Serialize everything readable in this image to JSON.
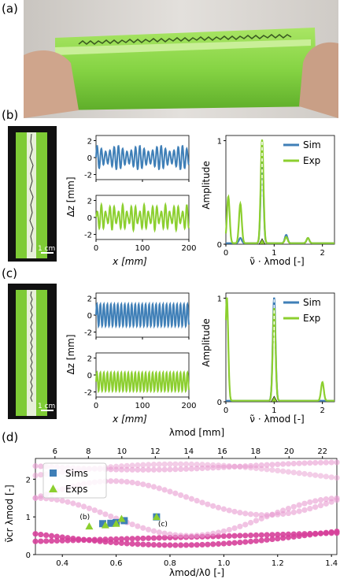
{
  "panels": {
    "a": "(a)",
    "b": "(b)",
    "c": "(c)",
    "d": "(d)"
  },
  "photo_a": {
    "description_colors": {
      "background": "#d8d4cf",
      "slab": "#8fd64a",
      "hands": "#c8a48c"
    }
  },
  "scale_bar_label": "1 cm",
  "colors": {
    "sim": "#3f7fb7",
    "exp": "#8ccf2f",
    "pink_strong": "#d6409a",
    "pink_light": "#e79bd0"
  },
  "row_b": {
    "dz_ylabel": "Δz [mm]",
    "x_label": "x [mm]",
    "x_ticks": [
      "0",
      "100",
      "200"
    ],
    "top_yticks": [
      "2",
      "0",
      "-2"
    ],
    "bottom_yticks": [
      "2",
      "0",
      "-2"
    ],
    "spec_ylabel": "Amplitude",
    "spec_xlabel": "ν̃ · λmod [-]",
    "spec_xticks": [
      "0",
      "1",
      "2"
    ],
    "spec_yticks": [
      "1",
      "0"
    ],
    "legend": [
      "Sim",
      "Exp"
    ]
  },
  "row_c": {
    "dz_ylabel": "Δz [mm]",
    "x_label": "x [mm]",
    "x_ticks": [
      "0",
      "100",
      "200"
    ],
    "top_yticks": [
      "2",
      "0",
      "-2"
    ],
    "bottom_yticks": [
      "2",
      "0",
      "-2"
    ],
    "spec_ylabel": "Amplitude",
    "spec_xlabel": "ν̃ · λmod [-]",
    "spec_xticks": [
      "0",
      "1",
      "2"
    ],
    "spec_yticks": [
      "1",
      "0"
    ],
    "legend": [
      "Sim",
      "Exp"
    ]
  },
  "panel_d": {
    "top_xlabel": "λmod [mm]",
    "top_xticks": [
      "6",
      "8",
      "10",
      "12",
      "14",
      "16",
      "18",
      "20",
      "22"
    ],
    "bottom_xlabel": "λmod/λ0 [-]",
    "bottom_xticks": [
      "0.4",
      "0.6",
      "0.8",
      "1.0",
      "1.2",
      "1.4"
    ],
    "ylabel": "ν̃cr λmod [-]",
    "yticks": [
      "2",
      "1",
      "0"
    ],
    "legend": [
      "Sims",
      "Exps"
    ],
    "annotations": [
      "(b)",
      "(c)"
    ]
  },
  "chart_data": [
    {
      "type": "line",
      "panel": "b-top",
      "title": "",
      "xlabel": "",
      "ylabel": "Δz [mm]",
      "xlim": [
        0,
        200
      ],
      "ylim": [
        -2,
        2
      ],
      "series": [
        {
          "name": "Sim",
          "color": "#3f7fb7",
          "note_values": "oscillation amplitude ~1.5 mm, ~22 peaks over 0-200 mm"
        }
      ]
    },
    {
      "type": "line",
      "panel": "b-bottom",
      "xlabel": "x [mm]",
      "ylabel": "Δz [mm]",
      "xlim": [
        0,
        200
      ],
      "ylim": [
        -2,
        2
      ],
      "series": [
        {
          "name": "Exp",
          "color": "#8ccf2f"
        }
      ]
    },
    {
      "type": "line",
      "panel": "b-spectrum",
      "xlabel": "ν̃ · λmod [-]",
      "ylabel": "Amplitude",
      "xlim": [
        0,
        2.25
      ],
      "ylim": [
        0,
        1.05
      ],
      "series": [
        {
          "name": "Sim",
          "color": "#3f7fb7",
          "peaks": [
            [
              0.3,
              0.05
            ],
            [
              0.75,
              0.85
            ],
            [
              1.25,
              0.08
            ],
            [
              1.7,
              0.05
            ]
          ]
        },
        {
          "name": "Exp",
          "color": "#8ccf2f",
          "peaks": [
            [
              0.05,
              0.45
            ],
            [
              0.3,
              0.38
            ],
            [
              0.75,
              1.0
            ],
            [
              1.25,
              0.06
            ],
            [
              1.7,
              0.05
            ]
          ]
        }
      ]
    },
    {
      "type": "line",
      "panel": "c-top",
      "ylabel": "Δz [mm]",
      "xlim": [
        0,
        200
      ],
      "ylim": [
        -2,
        2
      ],
      "series": [
        {
          "name": "Sim",
          "color": "#3f7fb7"
        }
      ]
    },
    {
      "type": "line",
      "panel": "c-bottom",
      "xlabel": "x [mm]",
      "ylabel": "Δz [mm]",
      "xlim": [
        0,
        200
      ],
      "ylim": [
        -2,
        2
      ],
      "series": [
        {
          "name": "Exp",
          "color": "#8ccf2f"
        }
      ]
    },
    {
      "type": "line",
      "panel": "c-spectrum",
      "xlabel": "ν̃ · λmod [-]",
      "ylabel": "Amplitude",
      "xlim": [
        0,
        2.25
      ],
      "ylim": [
        0,
        1.05
      ],
      "series": [
        {
          "name": "Sim",
          "color": "#3f7fb7",
          "peaks": [
            [
              1.0,
              1.0
            ]
          ]
        },
        {
          "name": "Exp",
          "color": "#8ccf2f",
          "peaks": [
            [
              0.02,
              1.0
            ],
            [
              1.0,
              0.9
            ],
            [
              2.0,
              0.18
            ]
          ]
        }
      ]
    },
    {
      "type": "scatter",
      "panel": "d",
      "xlabel": "λmod/λ0 [-]",
      "ylabel": "ν̃cr λmod [-]",
      "xlim": [
        0.3,
        1.42
      ],
      "ylim": [
        0,
        2.55
      ],
      "series": [
        {
          "name": "Sims",
          "color": "#3f7fb7",
          "points": [
            [
              0.55,
              0.82
            ],
            [
              0.58,
              0.83
            ],
            [
              0.6,
              0.85
            ],
            [
              0.63,
              0.9
            ],
            [
              0.75,
              1.0
            ]
          ]
        },
        {
          "name": "Exps",
          "color": "#8ccf2f",
          "points": [
            [
              0.5,
              0.75
            ],
            [
              0.56,
              0.78
            ],
            [
              0.6,
              0.82
            ],
            [
              0.62,
              0.95
            ],
            [
              0.75,
              1.0
            ]
          ]
        }
      ]
    }
  ]
}
